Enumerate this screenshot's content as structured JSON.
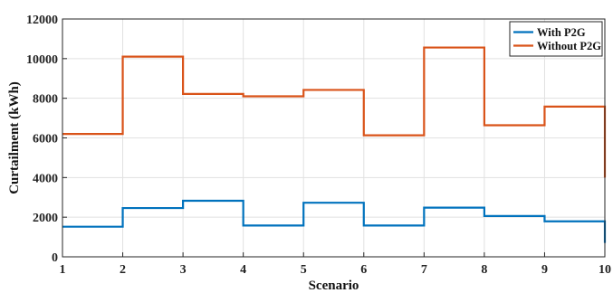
{
  "chart_data": {
    "type": "line",
    "step": "post",
    "xlabel": "Scenario",
    "ylabel": "Curtailment (kWh)",
    "xlim": [
      1,
      10
    ],
    "ylim": [
      0,
      12000
    ],
    "x_ticks": [
      1,
      2,
      3,
      4,
      5,
      6,
      7,
      8,
      9,
      10
    ],
    "y_ticks": [
      0,
      2000,
      4000,
      6000,
      8000,
      10000,
      12000
    ],
    "grid": true,
    "legend_position": "top-right",
    "series": [
      {
        "name": "With P2G",
        "color": "#0072BD",
        "x": [
          1,
          2,
          3,
          4,
          5,
          6,
          7,
          8,
          9,
          10
        ],
        "values": [
          1520,
          2460,
          2830,
          1580,
          2730,
          1580,
          2480,
          2060,
          1790,
          700
        ]
      },
      {
        "name": "Without P2G",
        "color": "#D95319",
        "x": [
          1,
          2,
          3,
          4,
          5,
          6,
          7,
          8,
          9,
          10
        ],
        "values": [
          6200,
          10100,
          8220,
          8100,
          8420,
          6130,
          10560,
          6640,
          7580,
          4000
        ]
      }
    ]
  }
}
